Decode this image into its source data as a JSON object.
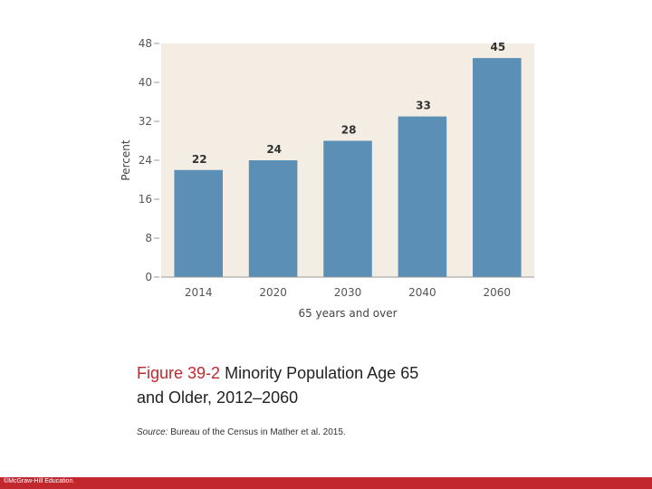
{
  "chart_data": {
    "type": "bar",
    "categories": [
      "2014",
      "2020",
      "2030",
      "2040",
      "2060"
    ],
    "values": [
      22,
      24,
      28,
      33,
      45
    ],
    "xlabel": "65 years and over",
    "ylabel": "Percent",
    "ylim": [
      0,
      48
    ],
    "yticks": [
      0,
      8,
      16,
      24,
      32,
      40,
      48
    ],
    "grid": false,
    "colors": {
      "bar": "#5b8fb5",
      "plot_bg": "#f3ede4",
      "axis": "#9a9a9a"
    }
  },
  "caption": {
    "figure_number": "Figure 39-2",
    "title_line1": "Minority Population Age 65",
    "title_line2": "and Older, 2012–2060"
  },
  "source": {
    "label": "Source:",
    "text": "Bureau of the Census in Mather et al. 2015."
  },
  "footer": {
    "copyright": "©McGraw-Hill Education."
  }
}
